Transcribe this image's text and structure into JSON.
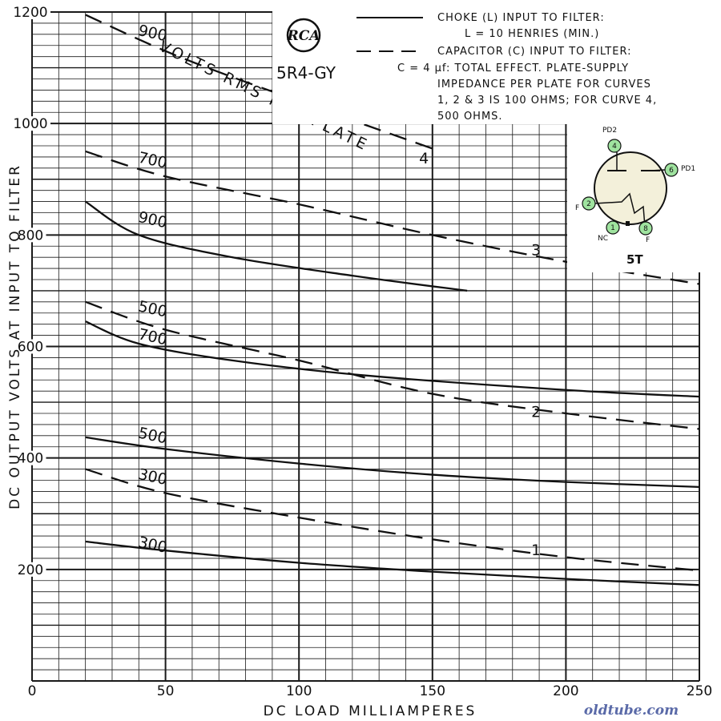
{
  "chart_data": {
    "type": "line",
    "tube_type": "5R4-GY",
    "brand": "RCA",
    "xlabel": "DC LOAD MILLIAMPERES",
    "ylabel": "DC OUTPUT VOLTS AT INPUT TO FILTER",
    "xlim": [
      0,
      250
    ],
    "ylim": [
      0,
      1200
    ],
    "x_ticks": [
      0,
      50,
      100,
      150,
      200,
      250
    ],
    "y_ticks": [
      200,
      400,
      600,
      800,
      1000,
      1200
    ],
    "grid": true,
    "series_label_prefix": "",
    "series": [
      {
        "name": "900",
        "style": "solid",
        "curve_number": "",
        "label_at": [
          40,
          835
        ],
        "points": [
          [
            20,
            860
          ],
          [
            40,
            800
          ],
          [
            75,
            760
          ],
          [
            120,
            727
          ],
          [
            163,
            700
          ]
        ]
      },
      {
        "name": "700",
        "style": "solid",
        "curve_number": "",
        "label_at": [
          40,
          625
        ],
        "points": [
          [
            20,
            645
          ],
          [
            40,
            605
          ],
          [
            75,
            575
          ],
          [
            125,
            548
          ],
          [
            200,
            522
          ],
          [
            250,
            510
          ]
        ]
      },
      {
        "name": "500",
        "style": "solid",
        "curve_number": "",
        "label_at": [
          40,
          448
        ],
        "points": [
          [
            20,
            437
          ],
          [
            50,
            416
          ],
          [
            100,
            390
          ],
          [
            150,
            370
          ],
          [
            200,
            357
          ],
          [
            250,
            348
          ]
        ]
      },
      {
        "name": "300",
        "style": "solid",
        "curve_number": "",
        "label_at": [
          40,
          252
        ],
        "points": [
          [
            20,
            250
          ],
          [
            50,
            234
          ],
          [
            100,
            212
          ],
          [
            150,
            196
          ],
          [
            200,
            183
          ],
          [
            250,
            172
          ]
        ]
      },
      {
        "name": "900",
        "style": "dashed",
        "curve_number": "4",
        "label_at": [
          40,
          1170
        ],
        "curve_number_at": [
          145,
          940
        ],
        "points": [
          [
            20,
            1195
          ],
          [
            55,
            1120
          ],
          [
            100,
            1040
          ],
          [
            150,
            955
          ]
        ]
      },
      {
        "name": "700",
        "style": "dashed",
        "curve_number": "3",
        "label_at": [
          40,
          942
        ],
        "curve_number_at": [
          187,
          775
        ],
        "points": [
          [
            20,
            950
          ],
          [
            50,
            905
          ],
          [
            100,
            855
          ],
          [
            150,
            800
          ],
          [
            200,
            752
          ],
          [
            250,
            712
          ]
        ]
      },
      {
        "name": "500",
        "style": "dashed",
        "curve_number": "2",
        "label_at": [
          40,
          675
        ],
        "curve_number_at": [
          187,
          485
        ],
        "points": [
          [
            20,
            680
          ],
          [
            50,
            630
          ],
          [
            100,
            575
          ],
          [
            150,
            515
          ],
          [
            200,
            480
          ],
          [
            250,
            452
          ]
        ]
      },
      {
        "name": "300",
        "style": "dashed",
        "curve_number": "1",
        "label_at": [
          40,
          374
        ],
        "curve_number_at": [
          187,
          237
        ],
        "points": [
          [
            20,
            380
          ],
          [
            50,
            337
          ],
          [
            100,
            293
          ],
          [
            150,
            254
          ],
          [
            200,
            222
          ],
          [
            250,
            198
          ]
        ]
      }
    ],
    "annotation_text": "VOLTS RMS PER PLATE",
    "legend": {
      "solid_text_lines": [
        "CHOKE (L) INPUT TO FILTER:",
        "L = 10 HENRIES (MIN.)"
      ],
      "dashed_text_lines": [
        "CAPACITOR (C) INPUT TO FILTER:",
        "C = 4 μf: TOTAL EFFECT. PLATE-SUPPLY",
        "IMPEDANCE PER PLATE FOR CURVES",
        "1, 2 & 3 IS 100 OHMS; FOR CURVE 4,",
        "500 OHMS."
      ]
    },
    "base_diagram": {
      "code": "5T",
      "pins": [
        {
          "num": "4",
          "label": "PD2"
        },
        {
          "num": "6",
          "label": "PD1"
        },
        {
          "num": "2",
          "label": "F"
        },
        {
          "num": "1",
          "label": "NC"
        },
        {
          "num": "8",
          "label": "F"
        }
      ]
    }
  },
  "watermark": "oldtube.com",
  "colors": {
    "ink": "#111111",
    "grid": "#1a1a1a",
    "pin_fill": "#9fe39f",
    "socket_fill": "#f3f0da",
    "watermark": "#5a6aa8"
  }
}
